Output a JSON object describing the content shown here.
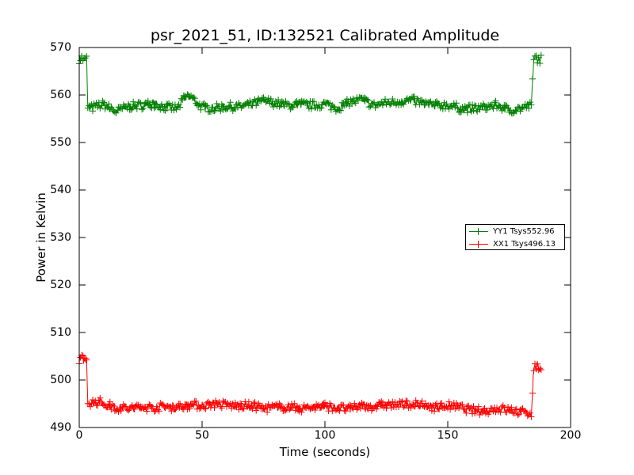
{
  "chart_data": {
    "type": "line",
    "title": "psr_2021_51, ID:132521 Calibrated Amplitude",
    "xlabel": "Time (seconds)",
    "ylabel": "Power in Kelvin",
    "xlim": [
      0,
      200
    ],
    "ylim": [
      490,
      570
    ],
    "xticks": [
      "0",
      "50",
      "100",
      "150",
      "200"
    ],
    "yticks": [
      "490",
      "500",
      "510",
      "520",
      "530",
      "540",
      "550",
      "560",
      "570"
    ],
    "grid": false,
    "legend_position": "center-right",
    "marker": "+",
    "series": [
      {
        "name": "YY1 Tsys552.96",
        "color": "#008000",
        "points": [
          [
            0,
            567.5
          ],
          [
            1,
            567.8
          ],
          [
            2,
            567.3
          ],
          [
            3,
            567.6
          ],
          [
            3.5,
            557.5
          ],
          [
            5,
            557.2
          ],
          [
            8,
            557.8
          ],
          [
            10,
            558.0
          ],
          [
            15,
            556.5
          ],
          [
            20,
            557.6
          ],
          [
            25,
            557.8
          ],
          [
            30,
            558.2
          ],
          [
            35,
            557.4
          ],
          [
            40,
            557.2
          ],
          [
            43,
            559.5
          ],
          [
            45,
            559.8
          ],
          [
            50,
            557.4
          ],
          [
            55,
            557.2
          ],
          [
            60,
            557.6
          ],
          [
            65,
            557.5
          ],
          [
            70,
            558.0
          ],
          [
            75,
            558.8
          ],
          [
            80,
            558.3
          ],
          [
            85,
            557.8
          ],
          [
            90,
            558.0
          ],
          [
            95,
            557.8
          ],
          [
            100,
            558.1
          ],
          [
            105,
            557.2
          ],
          [
            110,
            558.5
          ],
          [
            115,
            559.0
          ],
          [
            120,
            557.8
          ],
          [
            125,
            558.4
          ],
          [
            130,
            558.6
          ],
          [
            135,
            558.9
          ],
          [
            140,
            558.3
          ],
          [
            145,
            557.8
          ],
          [
            150,
            557.9
          ],
          [
            155,
            557.2
          ],
          [
            160,
            557.1
          ],
          [
            165,
            557.4
          ],
          [
            170,
            557.9
          ],
          [
            175,
            556.8
          ],
          [
            180,
            557.2
          ],
          [
            184,
            557.8
          ],
          [
            185,
            567.5
          ],
          [
            186,
            567.9
          ],
          [
            187,
            567.4
          ],
          [
            188,
            567.6
          ]
        ]
      },
      {
        "name": "XX1 Tsys496.13",
        "color": "#ff0000",
        "points": [
          [
            0,
            504.3
          ],
          [
            1,
            504.6
          ],
          [
            2,
            504.1
          ],
          [
            3,
            504.4
          ],
          [
            3.5,
            495.4
          ],
          [
            5,
            495.2
          ],
          [
            8,
            495.5
          ],
          [
            10,
            495.0
          ],
          [
            15,
            494.2
          ],
          [
            20,
            494.0
          ],
          [
            25,
            494.3
          ],
          [
            30,
            494.2
          ],
          [
            35,
            494.4
          ],
          [
            40,
            494.3
          ],
          [
            45,
            494.8
          ],
          [
            50,
            494.6
          ],
          [
            55,
            495.0
          ],
          [
            60,
            494.7
          ],
          [
            65,
            494.5
          ],
          [
            70,
            494.6
          ],
          [
            75,
            494.1
          ],
          [
            80,
            494.2
          ],
          [
            85,
            494.4
          ],
          [
            90,
            494.0
          ],
          [
            95,
            494.3
          ],
          [
            100,
            494.5
          ],
          [
            105,
            494.1
          ],
          [
            110,
            493.9
          ],
          [
            115,
            494.6
          ],
          [
            120,
            494.4
          ],
          [
            125,
            494.8
          ],
          [
            130,
            494.7
          ],
          [
            135,
            495.0
          ],
          [
            140,
            494.6
          ],
          [
            145,
            494.3
          ],
          [
            150,
            494.6
          ],
          [
            155,
            494.2
          ],
          [
            160,
            493.6
          ],
          [
            165,
            493.5
          ],
          [
            170,
            494.0
          ],
          [
            175,
            493.7
          ],
          [
            180,
            493.2
          ],
          [
            184,
            493.0
          ],
          [
            185,
            502.6
          ],
          [
            186,
            502.9
          ],
          [
            187,
            502.4
          ],
          [
            188,
            502.6
          ]
        ]
      }
    ]
  }
}
